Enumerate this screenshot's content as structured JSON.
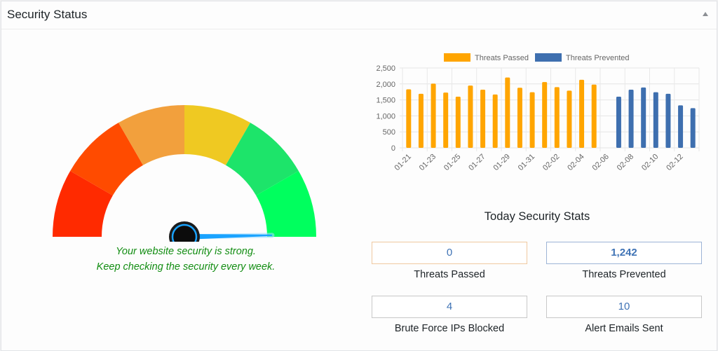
{
  "header": {
    "title": "Security Status",
    "toggle_icon": "triangle-up-icon"
  },
  "gauge": {
    "segments": [
      {
        "color": "#FF2A00"
      },
      {
        "color": "#FF4B00"
      },
      {
        "color": "#F2A03D"
      },
      {
        "color": "#EFC922"
      },
      {
        "color": "#1DE46A"
      },
      {
        "color": "#00FF5E"
      }
    ],
    "needle_color": "#1aa3ff",
    "hub_color": "#111111",
    "needle_angle_deg": 89,
    "message_line1": "Your website security is strong.",
    "message_line2": "Keep checking the security every week.",
    "message_color": "#128d12"
  },
  "chart_data": {
    "type": "bar",
    "title": "",
    "xlabel": "",
    "ylabel": "",
    "ylim": [
      0,
      2500
    ],
    "yticks": [
      0,
      500,
      1000,
      1500,
      2000,
      2500
    ],
    "ytick_labels": [
      "0",
      "500",
      "1,000",
      "1,500",
      "2,000",
      "2,500"
    ],
    "grid": true,
    "legend_position": "top",
    "stacked": true,
    "categories": [
      "01-21",
      "01-22",
      "01-23",
      "01-24",
      "01-25",
      "01-26",
      "01-27",
      "01-28",
      "01-29",
      "01-30",
      "01-31",
      "02-01",
      "02-02",
      "02-03",
      "02-04",
      "02-05",
      "02-06",
      "02-07",
      "02-08",
      "02-09",
      "02-10",
      "02-11",
      "02-12",
      "02-13"
    ],
    "xtick_labels_shown": [
      "01-21",
      "01-23",
      "01-25",
      "01-27",
      "01-29",
      "01-31",
      "02-02",
      "02-04",
      "02-06",
      "02-08",
      "02-10",
      "02-12"
    ],
    "series": [
      {
        "name": "Threats Passed",
        "color": "#FFA500",
        "values": [
          1830,
          1690,
          2010,
          1730,
          1600,
          1950,
          1820,
          1670,
          2200,
          1880,
          1740,
          2060,
          1900,
          1790,
          2130,
          1980,
          0,
          0,
          0,
          0,
          0,
          0,
          0,
          0
        ]
      },
      {
        "name": "Threats Prevented",
        "color": "#3E6FAF",
        "values": [
          0,
          0,
          0,
          0,
          0,
          0,
          0,
          0,
          0,
          0,
          0,
          0,
          0,
          0,
          0,
          0,
          0,
          1600,
          1820,
          1890,
          1740,
          1690,
          1330,
          1242
        ]
      }
    ]
  },
  "stats": {
    "title": "Today Security Stats",
    "items": [
      {
        "value": "0",
        "label": "Threats Passed",
        "border": "#f0c9a0",
        "bold": false
      },
      {
        "value": "1,242",
        "label": "Threats Prevented",
        "border": "#9db4d6",
        "bold": true
      },
      {
        "value": "4",
        "label": "Brute Force IPs Blocked",
        "border": "#c8c8c8",
        "bold": false
      },
      {
        "value": "10",
        "label": "Alert Emails Sent",
        "border": "#c8c8c8",
        "bold": false
      }
    ]
  }
}
